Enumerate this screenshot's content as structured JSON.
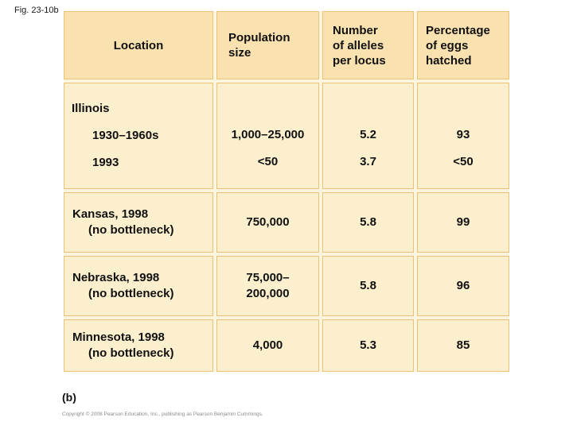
{
  "figure_label": "Fig. 23-10b",
  "panel_label": "(b)",
  "copyright": "Copyright © 2008 Pearson Education, Inc., publishing as Pearson Benjamin Cummings.",
  "colors": {
    "header_bg": "#fae2b0",
    "body_bg": "#fcefce",
    "grid_line": "#ecc178",
    "gap_bg": "#fdf5de",
    "text": "#111111"
  },
  "table": {
    "headers": {
      "location": "Location",
      "population": "Population size",
      "alleles": "Number of alleles per locus",
      "eggs": "Percentage of eggs hatched"
    },
    "illinois": {
      "heading": "Illinois",
      "rows": [
        {
          "period": "1930–1960s",
          "population": "1,000–25,000",
          "alleles": "5.2",
          "eggs": "93"
        },
        {
          "period": "1993",
          "population": "<50",
          "alleles": "3.7",
          "eggs": "<50"
        }
      ]
    },
    "locations": [
      {
        "name": "Kansas, 1998",
        "qualifier": "(no bottleneck)",
        "population": "750,000",
        "alleles": "5.8",
        "eggs": "99"
      },
      {
        "name": "Nebraska, 1998",
        "qualifier": "(no bottleneck)",
        "population_line1": "75,000–",
        "population_line2": "200,000",
        "alleles": "5.8",
        "eggs": "96"
      },
      {
        "name": "Minnesota, 1998",
        "qualifier": "(no bottleneck)",
        "population": "4,000",
        "alleles": "5.3",
        "eggs": "85"
      }
    ]
  },
  "chart_data": {
    "type": "table",
    "columns": [
      "Location",
      "Population size",
      "Number of alleles per locus",
      "Percentage of eggs hatched"
    ],
    "rows": [
      [
        "Illinois 1930–1960s",
        "1,000–25,000",
        5.2,
        93
      ],
      [
        "Illinois 1993",
        "<50",
        3.7,
        "<50"
      ],
      [
        "Kansas, 1998 (no bottleneck)",
        "750,000",
        5.8,
        99
      ],
      [
        "Nebraska, 1998 (no bottleneck)",
        "75,000–200,000",
        5.8,
        96
      ],
      [
        "Minnesota, 1998 (no bottleneck)",
        "4,000",
        5.3,
        85
      ]
    ]
  }
}
